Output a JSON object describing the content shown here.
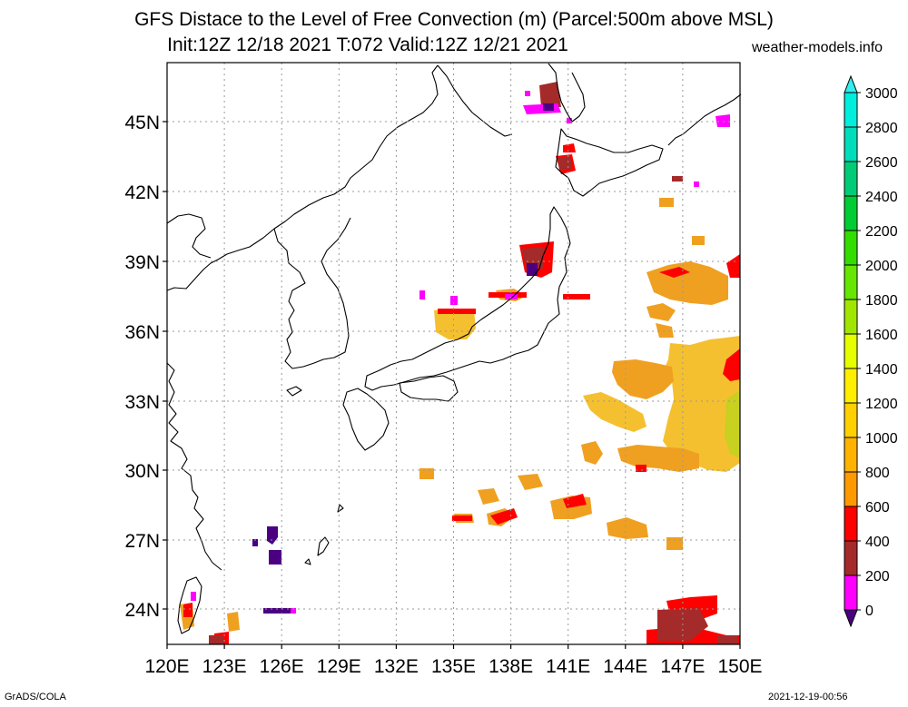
{
  "title_line1": "GFS Distace to the Level of Free Convection (m) (Parcel:500m above MSL)",
  "title_line2": "Init:12Z 12/18 2021 T:072 Valid:12Z 12/21 2021",
  "source": "weather-models.info",
  "footer_left": "GrADS/COLA",
  "footer_right": "2021-12-19-00:56",
  "map": {
    "lat_labels": [
      "45N",
      "42N",
      "39N",
      "36N",
      "33N",
      "30N",
      "27N",
      "24N"
    ],
    "lon_labels": [
      "120E",
      "123E",
      "126E",
      "129E",
      "132E",
      "135E",
      "138E",
      "141E",
      "144E",
      "147E",
      "150E"
    ]
  },
  "colorbar": {
    "levels": [
      "0",
      "200",
      "400",
      "600",
      "800",
      "1000",
      "1200",
      "1400",
      "1600",
      "1800",
      "2000",
      "2200",
      "2400",
      "2600",
      "2800",
      "3000"
    ],
    "colors": [
      "#4b0082",
      "#ff00ff",
      "#a52a2a",
      "#ff0000",
      "#ff9900",
      "#ffb300",
      "#ffd000",
      "#ffee00",
      "#e6ff00",
      "#a0e600",
      "#66e600",
      "#33dd00",
      "#00cc33",
      "#00cc77",
      "#00ddbb",
      "#00eedd",
      "#33eeee"
    ]
  },
  "palette": {
    "yellow_orange": "#f5c030",
    "orange": "#f0a020",
    "red": "#ff0000",
    "brown": "#a52a2a",
    "magenta": "#ff00ff",
    "indigo": "#4b0082",
    "yellow_green": "#c8d020"
  }
}
